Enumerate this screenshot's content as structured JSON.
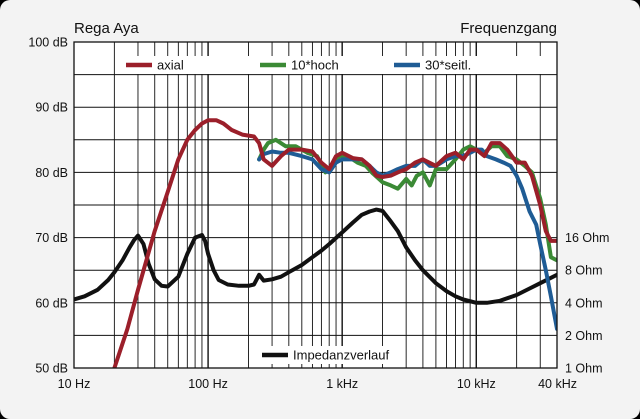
{
  "chart_data": {
    "type": "line",
    "title_left": "Rega Aya",
    "title_right": "Frequenzgang",
    "x_scale": "log",
    "xlim": [
      10,
      40000
    ],
    "ylim": [
      50,
      100
    ],
    "y_unit": "dB",
    "grid": true,
    "legend_placement": "top",
    "x_ticks": [
      {
        "value": 10,
        "label": "10 Hz"
      },
      {
        "value": 100,
        "label": "100 Hz"
      },
      {
        "value": 1000,
        "label": "1 kHz"
      },
      {
        "value": 10000,
        "label": "10 kHz"
      },
      {
        "value": 40000,
        "label": "40 kHz"
      }
    ],
    "y_ticks": [
      {
        "value": 100,
        "label": "100 dB"
      },
      {
        "value": 90,
        "label": "90 dB"
      },
      {
        "value": 80,
        "label": "80 dB"
      },
      {
        "value": 70,
        "label": "70 dB"
      },
      {
        "value": 60,
        "label": "60 dB"
      },
      {
        "value": 50,
        "label": "50 dB"
      }
    ],
    "right_axis": {
      "label_values_db": [
        70,
        65,
        60,
        55,
        50
      ],
      "labels": [
        "16 Ohm",
        "8 Ohm",
        "4 Ohm",
        "2 Ohm",
        "1 Ohm"
      ]
    },
    "series": [
      {
        "name": "axial",
        "color": "#9b1f2a",
        "legend_row": "top",
        "x": [
          20,
          25,
          30,
          40,
          50,
          60,
          70,
          80,
          90,
          100,
          115,
          130,
          150,
          180,
          220,
          240,
          260,
          300,
          350,
          400,
          500,
          600,
          700,
          800,
          900,
          1000,
          1200,
          1400,
          1600,
          1800,
          2000,
          2300,
          2600,
          3000,
          3500,
          4000,
          5000,
          6000,
          7000,
          8000,
          9000,
          10000,
          11500,
          13000,
          15000,
          17000,
          20000,
          23000,
          26000,
          30000,
          33000,
          36000,
          40000
        ],
        "values": [
          50,
          56,
          62,
          71,
          77,
          82,
          85,
          86.5,
          87.5,
          88,
          88,
          87.5,
          86.5,
          85.8,
          85.5,
          84.5,
          82,
          81,
          82.5,
          83.5,
          83.5,
          83.2,
          81.5,
          80.5,
          82.5,
          83,
          82.2,
          82,
          81,
          79.5,
          79.3,
          79.5,
          80,
          80.5,
          81.5,
          82,
          81,
          82.5,
          83,
          82,
          83.5,
          83.5,
          82.5,
          84.5,
          84.5,
          83.5,
          81.5,
          81.5,
          79.5,
          75,
          71,
          69.5,
          69.5
        ]
      },
      {
        "name": "10*hoch",
        "color": "#3b8a35",
        "legend_row": "top",
        "x": [
          240,
          260,
          280,
          320,
          380,
          450,
          550,
          650,
          750,
          850,
          950,
          1100,
          1300,
          1500,
          1700,
          2000,
          2300,
          2600,
          3000,
          3300,
          3600,
          4000,
          4500,
          5000,
          6000,
          7000,
          8000,
          9000,
          10000,
          11500,
          13000,
          15000,
          17000,
          20000,
          23000,
          26000,
          30000,
          33000,
          36000,
          40000
        ],
        "values": [
          82,
          83.5,
          84.5,
          85,
          84,
          84,
          83,
          82.5,
          80,
          81,
          82.5,
          82.5,
          81.5,
          81,
          79.8,
          78.5,
          78,
          77.5,
          79,
          78,
          79.5,
          80,
          78,
          80.5,
          80.5,
          82,
          83.5,
          84,
          83.5,
          83,
          84,
          84,
          82.5,
          82,
          81,
          80,
          76,
          72,
          67,
          66.5
        ]
      },
      {
        "name": "30*seitl.",
        "color": "#1f5c95",
        "legend_row": "top",
        "x": [
          240,
          260,
          300,
          350,
          400,
          500,
          600,
          700,
          800,
          900,
          1000,
          1200,
          1400,
          1600,
          1800,
          2000,
          2300,
          2600,
          3000,
          3500,
          4000,
          4500,
          5000,
          6000,
          7000,
          8000,
          9000,
          10000,
          11000,
          12000,
          14000,
          16000,
          18000,
          20000,
          22000,
          25000,
          28000,
          30000,
          33000,
          36000,
          40000
        ],
        "values": [
          82,
          82.8,
          83.2,
          83,
          83,
          82.5,
          82,
          80.5,
          80,
          81.5,
          82,
          82,
          82,
          81,
          80,
          79.5,
          80,
          80.5,
          81,
          81,
          82,
          81,
          81,
          82,
          82.5,
          82.5,
          83,
          83.5,
          83.5,
          82.5,
          82,
          81.5,
          81,
          79.5,
          77.5,
          74,
          72,
          69,
          65,
          61,
          56
        ]
      },
      {
        "name": "Impedanzverlauf",
        "color": "#111111",
        "legend_row": "bottom",
        "x": [
          10,
          12,
          15,
          18,
          20,
          23,
          26,
          28,
          30,
          33,
          36,
          40,
          45,
          50,
          60,
          70,
          80,
          90,
          95,
          100,
          110,
          120,
          140,
          170,
          200,
          220,
          240,
          260,
          300,
          350,
          400,
          500,
          600,
          700,
          800,
          1000,
          1200,
          1400,
          1600,
          1800,
          2000,
          2300,
          2600,
          3000,
          3500,
          4000,
          5000,
          6000,
          7000,
          8000,
          10000,
          12000,
          15000,
          20000,
          25000,
          30000,
          35000,
          40000
        ],
        "values": [
          60.5,
          61,
          62,
          63.5,
          64.7,
          66.5,
          68.5,
          69.6,
          70.3,
          69,
          66,
          63.6,
          62.6,
          62.5,
          64,
          67.5,
          70,
          70.4,
          69.5,
          67.5,
          65,
          63.5,
          62.8,
          62.6,
          62.6,
          62.8,
          64.3,
          63.4,
          63.6,
          64,
          64.7,
          65.8,
          67,
          68,
          69,
          70.8,
          72.3,
          73.5,
          74,
          74.3,
          74.1,
          72.5,
          71,
          68.5,
          66.5,
          65,
          63,
          61.8,
          61,
          60.5,
          60,
          60,
          60.3,
          61.2,
          62.2,
          63,
          63.7,
          64.3
        ]
      }
    ]
  }
}
